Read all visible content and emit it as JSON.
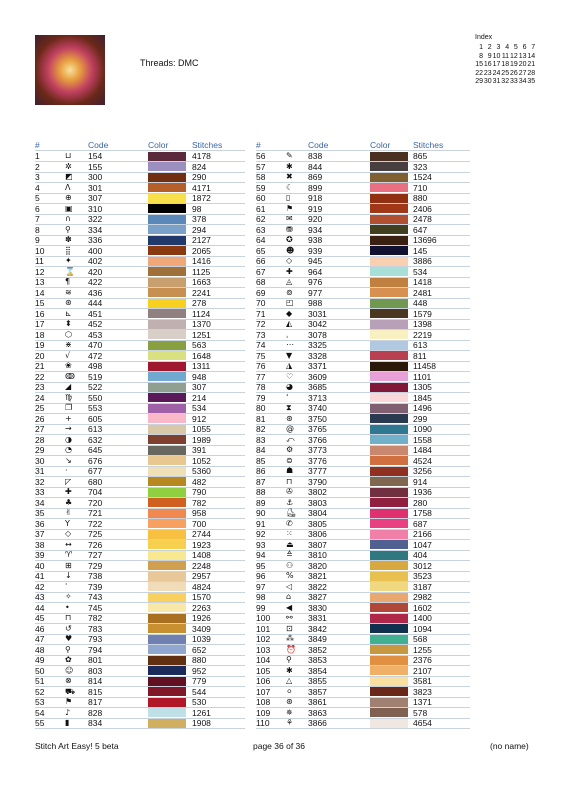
{
  "header": {
    "threads": "Threads: DMC"
  },
  "index": {
    "title": "Index",
    "pages": [
      1,
      2,
      3,
      4,
      5,
      6,
      7,
      8,
      9,
      10,
      11,
      12,
      13,
      14,
      15,
      16,
      17,
      18,
      19,
      20,
      21,
      22,
      23,
      24,
      25,
      26,
      27,
      28,
      29,
      30,
      31,
      32,
      33,
      34,
      35
    ]
  },
  "table": {
    "columns": [
      "#",
      "Code",
      "Color",
      "Stitches"
    ],
    "rows": [
      [
        1,
        "⊔",
        154,
        "#5a2a3a",
        4178
      ],
      [
        2,
        "✲",
        155,
        "#9a8fbf",
        824
      ],
      [
        3,
        "◩",
        300,
        "#6f2f10",
        290
      ],
      [
        4,
        "Λ",
        301,
        "#b5602a",
        4171
      ],
      [
        5,
        "⊕",
        307,
        "#f8e04a",
        1872
      ],
      [
        6,
        "▣",
        310,
        "#000000",
        98
      ],
      [
        7,
        "∩",
        322,
        "#5a88b8",
        378
      ],
      [
        8,
        "⚲",
        334,
        "#7aa2c8",
        294
      ],
      [
        9,
        "✽",
        336,
        "#1f3a6a",
        2127
      ],
      [
        10,
        "⣿",
        400,
        "#8a3a10",
        2065
      ],
      [
        11,
        "✦",
        402,
        "#f0a878",
        1416
      ],
      [
        12,
        "⌛",
        420,
        "#a0703a",
        1125
      ],
      [
        13,
        "¶",
        422,
        "#c8a070",
        1663
      ],
      [
        14,
        "≋",
        436,
        "#c89050",
        2241
      ],
      [
        15,
        "⊛",
        444,
        "#f8d020",
        278
      ],
      [
        16,
        "⊾",
        451,
        "#908080",
        1124
      ],
      [
        17,
        "⬍",
        452,
        "#c0b0b0",
        1370
      ],
      [
        18,
        "⬡",
        453,
        "#d8d0c8",
        1251
      ],
      [
        19,
        "⋇",
        470,
        "#88a040",
        563
      ],
      [
        20,
        "√",
        472,
        "#d8e080",
        1648
      ],
      [
        21,
        "❀",
        498,
        "#a01830",
        1311
      ],
      [
        22,
        "ↂ",
        519,
        "#70a8d0",
        948
      ],
      [
        23,
        "◢",
        522,
        "#8fa090",
        307
      ],
      [
        24,
        "♍",
        550,
        "#5a1a5a",
        214
      ],
      [
        25,
        "❐",
        553,
        "#a060a8",
        534
      ],
      [
        26,
        "+",
        605,
        "#f8b8c8",
        912
      ],
      [
        27,
        "→",
        613,
        "#d8c8a8",
        1055
      ],
      [
        28,
        "◑",
        632,
        "#804030",
        1989
      ],
      [
        29,
        "◔",
        645,
        "#686860",
        391
      ],
      [
        30,
        "↘",
        676,
        "#e8c890",
        1052
      ],
      [
        31,
        "·",
        677,
        "#f0e0b8",
        5360
      ],
      [
        32,
        "◸",
        680,
        "#b88820",
        482
      ],
      [
        33,
        "✚",
        704,
        "#90d040",
        790
      ],
      [
        34,
        "♣",
        720,
        "#d06020",
        782
      ],
      [
        35,
        "✌",
        721,
        "#f08850",
        958
      ],
      [
        36,
        "Y",
        722,
        "#f8a060",
        700
      ],
      [
        37,
        "◇",
        725,
        "#f8c040",
        2744
      ],
      [
        38,
        "↔",
        726,
        "#f8d050",
        1923
      ],
      [
        39,
        "♈",
        727,
        "#f8e890",
        1408
      ],
      [
        40,
        "⊞",
        729,
        "#d0a050",
        2248
      ],
      [
        41,
        "↓",
        738,
        "#e8c898",
        2957
      ],
      [
        42,
        "ˈ",
        739,
        "#f0dcb8",
        4824
      ],
      [
        43,
        "✧",
        743,
        "#f8d060",
        1570
      ],
      [
        44,
        "•",
        745,
        "#f8e8a8",
        2263
      ],
      [
        45,
        "⊓",
        782,
        "#a87020",
        1926
      ],
      [
        46,
        "↺",
        783,
        "#c89030",
        3409
      ],
      [
        47,
        "♥",
        793,
        "#7080b0",
        1039
      ],
      [
        48,
        "⚲",
        794,
        "#90a8d0",
        652
      ],
      [
        49,
        "✿",
        801,
        "#603010",
        880
      ],
      [
        50,
        "☺",
        803,
        "#1a2a5a",
        952
      ],
      [
        51,
        "⊗",
        814,
        "#601020",
        779
      ],
      [
        52,
        "⛟",
        815,
        "#801828",
        544
      ],
      [
        53,
        "⚑",
        817,
        "#b01828",
        530
      ],
      [
        54,
        "♪",
        828,
        "#c0e0e8",
        1261
      ],
      [
        55,
        "▮",
        834,
        "#d0b060",
        1908
      ],
      [
        56,
        "✎",
        838,
        "#4a3020",
        865
      ],
      [
        57,
        "✱",
        844,
        "#484040",
        323
      ],
      [
        58,
        "✖",
        869,
        "#806030",
        1524
      ],
      [
        59,
        "☾",
        899,
        "#e87080",
        710
      ],
      [
        60,
        "▯",
        918,
        "#903010",
        880
      ],
      [
        61,
        "⚑",
        919,
        "#a03818",
        2406
      ],
      [
        62,
        "✉",
        920,
        "#b05030",
        2478
      ],
      [
        63,
        "⛃",
        934,
        "#404020",
        647
      ],
      [
        64,
        "✪",
        938,
        "#3a2010",
        13696
      ],
      [
        65,
        "☻",
        939,
        "#101030",
        145
      ],
      [
        66,
        "◇",
        945,
        "#f8d0b0",
        3886
      ],
      [
        67,
        "✚",
        964,
        "#a8e0d8",
        534
      ],
      [
        68,
        "◬",
        976,
        "#c08040",
        1418
      ],
      [
        69,
        "⊚",
        977,
        "#d89050",
        2481
      ],
      [
        70,
        "◰",
        988,
        "#709850",
        448
      ],
      [
        71,
        "◆",
        3031,
        "#4a3820",
        1579
      ],
      [
        72,
        "◭",
        3042,
        "#b8a0b8",
        1398
      ],
      [
        73,
        "ˌ",
        3078,
        "#f8f0c0",
        2219
      ],
      [
        74,
        "⋯",
        3325,
        "#b0c8e0",
        613
      ],
      [
        75,
        "▼",
        3328,
        "#b84050",
        811
      ],
      [
        76,
        "◮",
        3371,
        "#2a1808",
        11458
      ],
      [
        77,
        "♡",
        3609,
        "#e8a0d8",
        1101
      ],
      [
        78,
        "◕",
        3685,
        "#801838",
        1305
      ],
      [
        79,
        "ʻ",
        3713,
        "#f8d8d8",
        1845
      ],
      [
        80,
        "⧗",
        3740,
        "#806070",
        1496
      ],
      [
        81,
        "⊛",
        3750,
        "#2a3a50",
        299
      ],
      [
        82,
        "@",
        3765,
        "#307890",
        1090
      ],
      [
        83,
        "⤺",
        3766,
        "#70b0c8",
        1558
      ],
      [
        84,
        "⚙",
        3773,
        "#c88870",
        1484
      ],
      [
        85,
        "⊜",
        3776,
        "#d07040",
        4524
      ],
      [
        86,
        "☗",
        3777,
        "#903020",
        3256
      ],
      [
        87,
        "⊓",
        3790,
        "#806850",
        914
      ],
      [
        88,
        "✇",
        3802,
        "#703040",
        1936
      ],
      [
        89,
        "⚓",
        3803,
        "#902040",
        280
      ],
      [
        90,
        "⛸",
        3804,
        "#e03070",
        1758
      ],
      [
        91,
        "✆",
        3805,
        "#e84080",
        687
      ],
      [
        92,
        "⁙",
        3806,
        "#f080a8",
        2166
      ],
      [
        93,
        "⏏",
        3807,
        "#506090",
        1047
      ],
      [
        94,
        "≙",
        3810,
        "#307880",
        404
      ],
      [
        95,
        "⚇",
        3820,
        "#d8a840",
        3012
      ],
      [
        96,
        "%",
        3821,
        "#e8c050",
        3523
      ],
      [
        97,
        "◁",
        3822,
        "#f0d880",
        3187
      ],
      [
        98,
        "⌂",
        3827,
        "#e8a870",
        2982
      ],
      [
        99,
        "◀",
        3830,
        "#b04838",
        1602
      ],
      [
        100,
        "⚯",
        3831,
        "#b02848",
        1400
      ],
      [
        101,
        "⊡",
        3842,
        "#103050",
        1094
      ],
      [
        102,
        "⁂",
        3849,
        "#40b090",
        568
      ],
      [
        103,
        "⏰",
        3852,
        "#c89840",
        1255
      ],
      [
        104,
        "⚲",
        3853,
        "#e09040",
        2376
      ],
      [
        105,
        "✱",
        3854,
        "#f0b068",
        2107
      ],
      [
        106,
        "△",
        3855,
        "#f8e0a0",
        3581
      ],
      [
        107,
        "⚪",
        3857,
        "#6a2818",
        3823
      ],
      [
        108,
        "⊛",
        3861,
        "#a08070",
        1371
      ],
      [
        109,
        "✵",
        3863,
        "#806050",
        578
      ],
      [
        110,
        "⚘",
        3866,
        "#f0e8e0",
        4654
      ]
    ]
  },
  "footer": {
    "left": "Stitch Art Easy! 5 beta",
    "center": "page 36 of 36",
    "right": "(no name)"
  }
}
